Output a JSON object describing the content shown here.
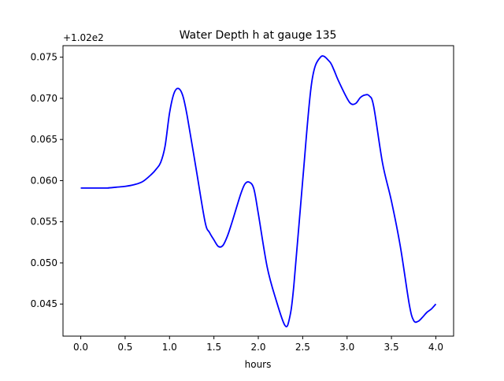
{
  "chart_data": {
    "type": "line",
    "title": "Water Depth h at gauge 135",
    "xlabel": "hours",
    "ylabel": "",
    "offset_label": "+1.02e2",
    "xlim": [
      -0.2,
      4.2
    ],
    "ylim": [
      0.0411,
      0.0764
    ],
    "x_ticks": [
      0.0,
      0.5,
      1.0,
      1.5,
      2.0,
      2.5,
      3.0,
      3.5,
      4.0
    ],
    "x_tick_labels": [
      "0.0",
      "0.5",
      "1.0",
      "1.5",
      "2.0",
      "2.5",
      "3.0",
      "3.5",
      "4.0"
    ],
    "y_ticks": [
      0.045,
      0.05,
      0.055,
      0.06,
      0.065,
      0.07,
      0.075
    ],
    "y_tick_labels": [
      "0.045",
      "0.050",
      "0.055",
      "0.060",
      "0.065",
      "0.070",
      "0.075"
    ],
    "grid": false,
    "series": [
      {
        "color": "#0000ff",
        "x": [
          0.0,
          0.1,
          0.2,
          0.3,
          0.4,
          0.5,
          0.6,
          0.7,
          0.8,
          0.85,
          0.9,
          0.95,
          1.0,
          1.05,
          1.1,
          1.15,
          1.2,
          1.3,
          1.4,
          1.45,
          1.5,
          1.55,
          1.6,
          1.65,
          1.7,
          1.8,
          1.85,
          1.9,
          1.95,
          2.0,
          2.1,
          2.2,
          2.3,
          2.35,
          2.4,
          2.5,
          2.6,
          2.7,
          2.8,
          2.85,
          2.9,
          3.0,
          3.05,
          3.1,
          3.15,
          3.2,
          3.25,
          3.3,
          3.4,
          3.5,
          3.6,
          3.7,
          3.75,
          3.8,
          3.85,
          3.9,
          3.95,
          4.0
        ],
        "y": [
          0.0591,
          0.0591,
          0.0591,
          0.0591,
          0.0592,
          0.0593,
          0.0595,
          0.0599,
          0.0608,
          0.0614,
          0.0622,
          0.0642,
          0.0682,
          0.0706,
          0.0712,
          0.0703,
          0.0678,
          0.0614,
          0.055,
          0.0537,
          0.0528,
          0.052,
          0.0521,
          0.0532,
          0.0548,
          0.0583,
          0.0596,
          0.0598,
          0.059,
          0.056,
          0.0495,
          0.0455,
          0.0424,
          0.0432,
          0.0472,
          0.06,
          0.0718,
          0.075,
          0.0745,
          0.0735,
          0.0722,
          0.07,
          0.0693,
          0.0694,
          0.0701,
          0.0704,
          0.0703,
          0.069,
          0.0621,
          0.0575,
          0.052,
          0.045,
          0.043,
          0.0429,
          0.0434,
          0.044,
          0.0444,
          0.045
        ]
      }
    ]
  }
}
